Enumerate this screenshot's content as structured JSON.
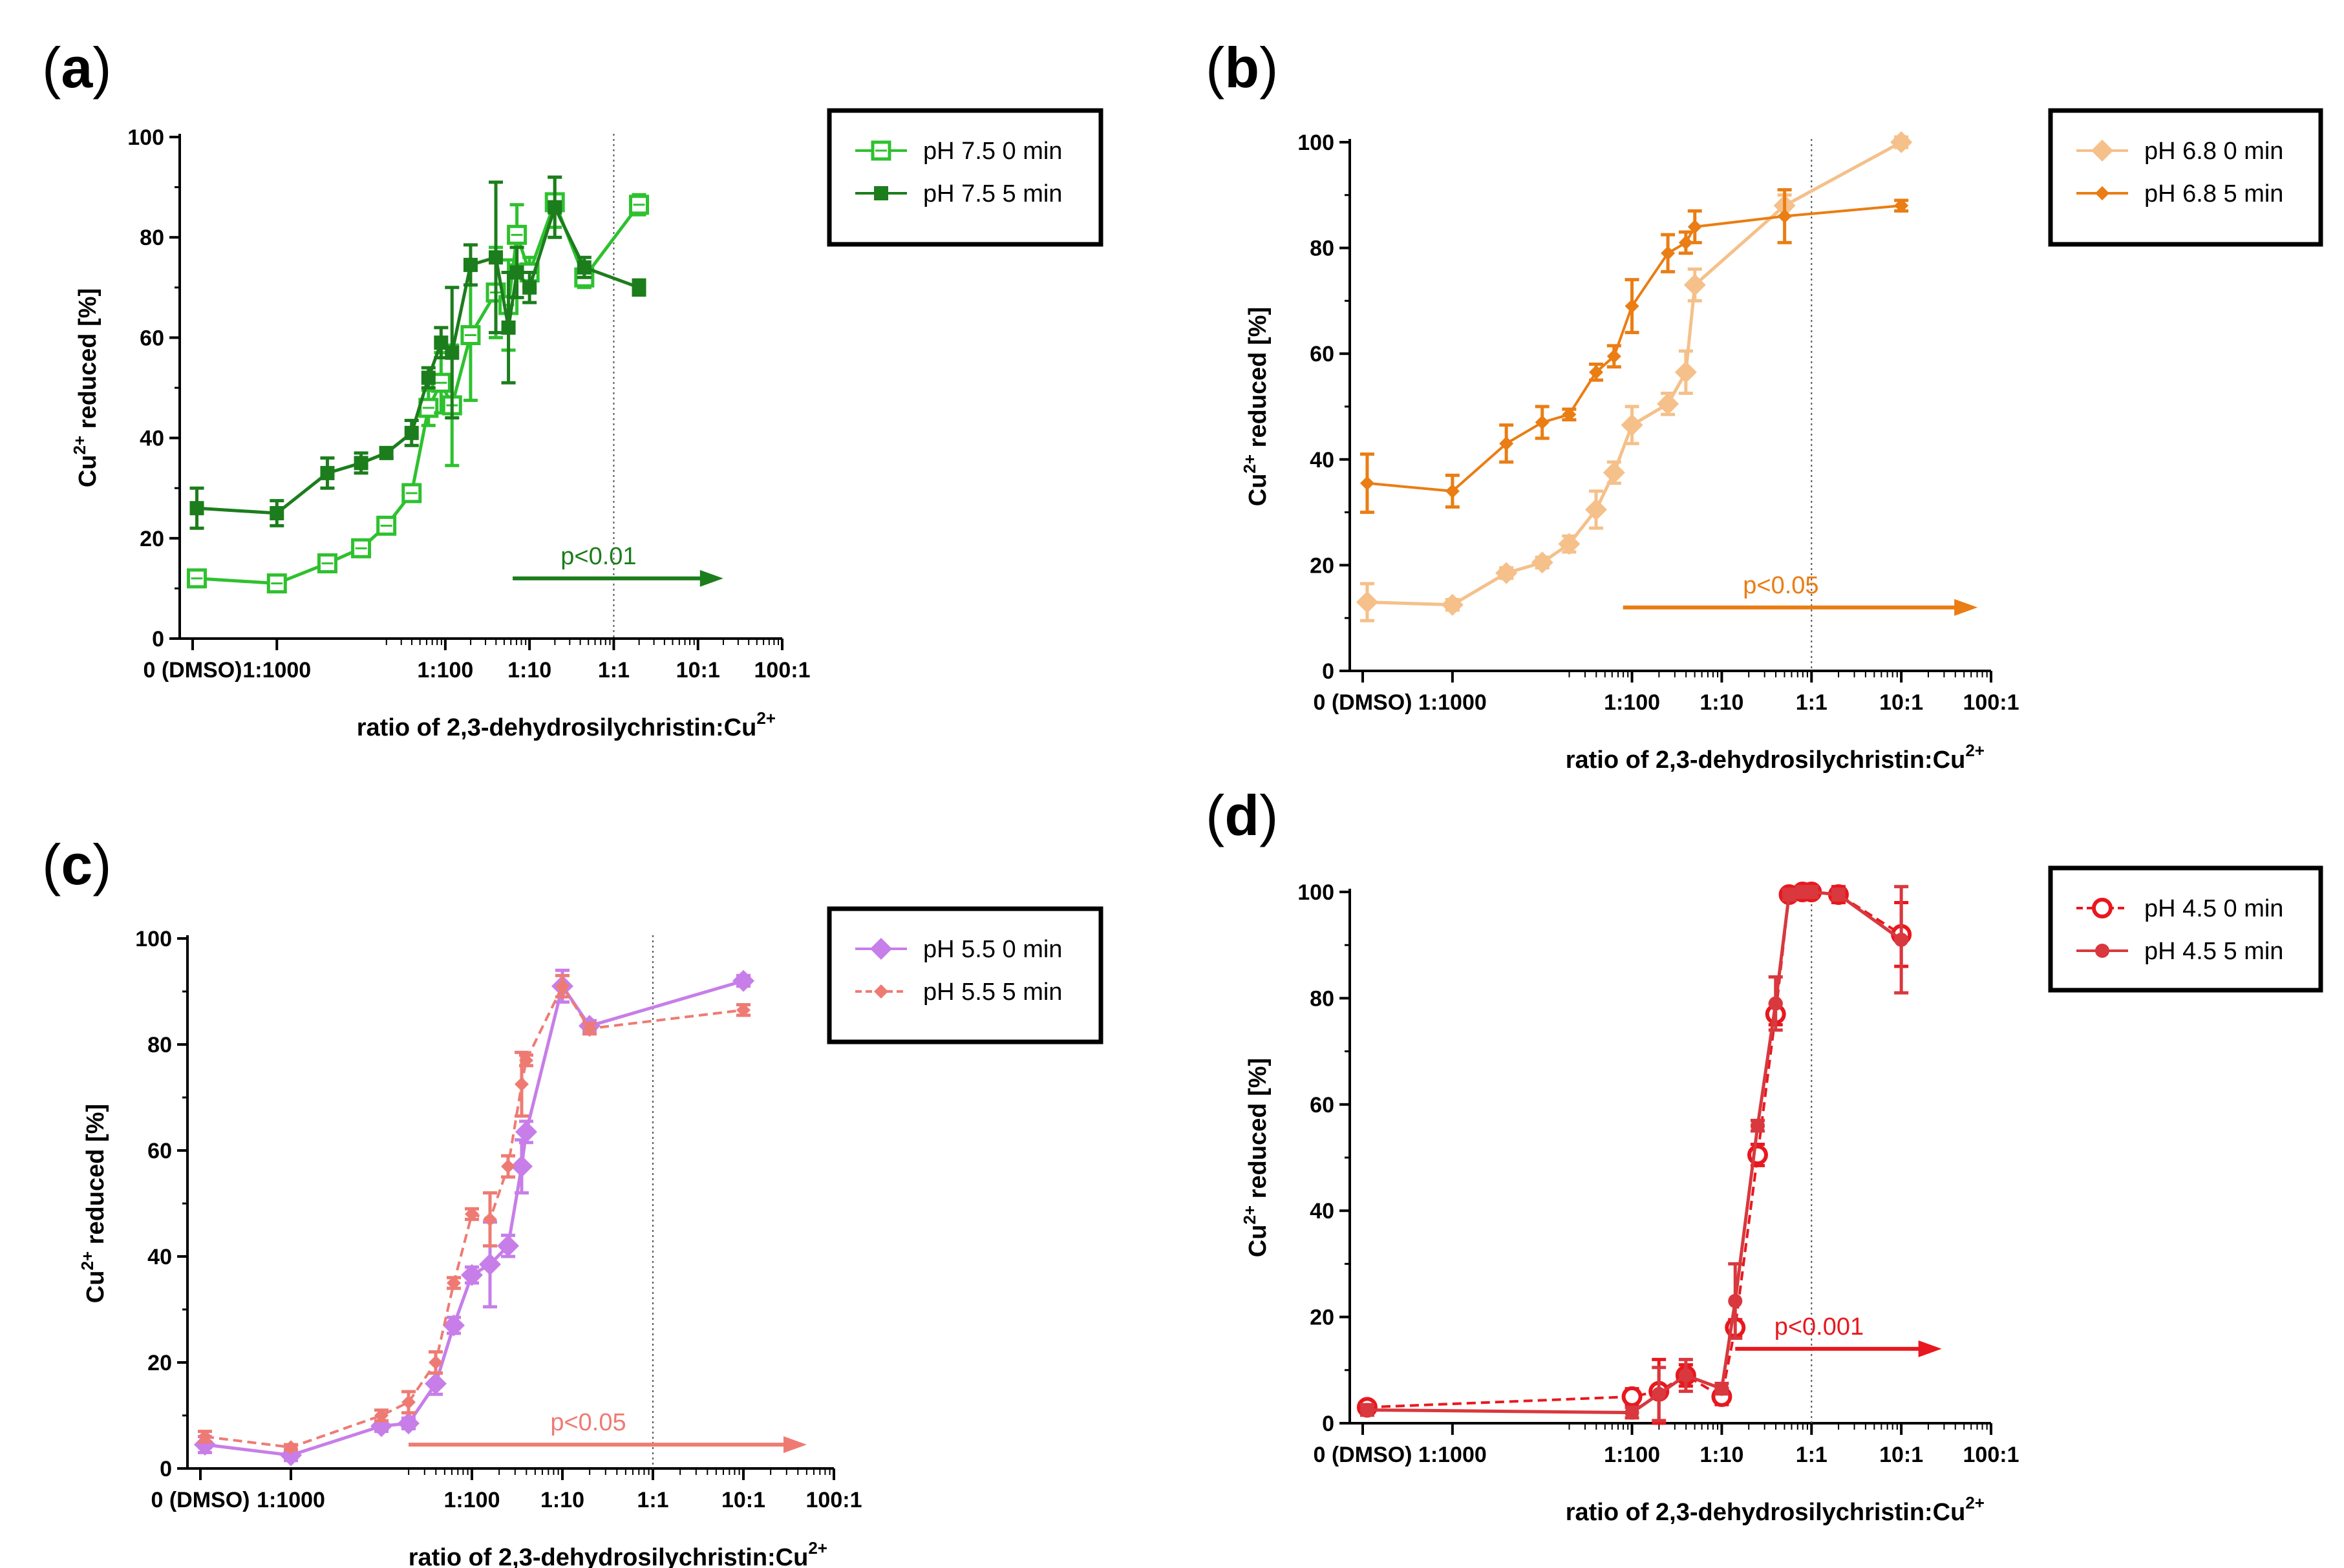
{
  "figure": {
    "colors": {
      "green_light": "#2ec12e",
      "green_dark": "#1c7d1c",
      "orange_light": "#f5c08a",
      "orange_dark": "#ea7d13",
      "purple": "#c77ee8",
      "salmon": "#ee7b73",
      "red": "#e8181e",
      "red_dark": "#d8383e"
    }
  },
  "chart_data": [
    {
      "id": "a",
      "type": "line",
      "panel_label": "a",
      "ylabel": "reduced [%]",
      "ylabel_prefix": "Cu",
      "ylabel_sup": "2+",
      "xlabel": "ratio of 2,3-dehydrosilychristin:Cu",
      "xlabel_sup": "2+",
      "x_tick_labels": [
        "0 (DMSO)",
        "1:1000",
        "1:100",
        "1:10",
        "1:1",
        "10:1",
        "100:1"
      ],
      "y_ticks": [
        0,
        20,
        40,
        60,
        80,
        100
      ],
      "ylim": [
        0,
        100
      ],
      "xlim": [
        -5,
        2
      ],
      "vline_x": 0,
      "significance": {
        "text": "p<0.01",
        "x_start": -1.2,
        "x_end": 1.3,
        "y": 12,
        "color": "#1c7d1c"
      },
      "legend": {
        "position": "top-right",
        "entries": [
          "pH 7.5 0 min",
          "pH 7.5 5 min"
        ]
      },
      "series": [
        {
          "name": "pH 7.5 0 min",
          "color": "#2ec12e",
          "marker": "square-open",
          "dashed": false,
          "x": [
            -4.95,
            -4,
            -3.4,
            -3,
            -2.7,
            -2.4,
            -2.2,
            -2.05,
            -1.92,
            -1.7,
            -1.4,
            -1.25,
            -1.15,
            -1,
            -0.7,
            -0.35,
            0.3
          ],
          "y": [
            12,
            11,
            15,
            18,
            22.5,
            29,
            46,
            51,
            46.5,
            60.5,
            69,
            66.5,
            80.5,
            73,
            87,
            72,
            86.5
          ],
          "err": [
            1.5,
            0.8,
            1,
            1,
            1,
            1.5,
            3.5,
            6,
            12,
            13,
            9,
            9,
            6,
            3,
            5,
            2,
            2
          ]
        },
        {
          "name": "pH 7.5 5 min",
          "color": "#1c7d1c",
          "marker": "square",
          "dashed": false,
          "x": [
            -4.95,
            -4,
            -3.4,
            -3,
            -2.7,
            -2.4,
            -2.2,
            -2.05,
            -1.92,
            -1.7,
            -1.4,
            -1.25,
            -1.15,
            -1,
            -0.7,
            -0.35,
            0.3
          ],
          "y": [
            26,
            25,
            33,
            35,
            37,
            41,
            52,
            59,
            57,
            74.5,
            76,
            62,
            73,
            70,
            86,
            74,
            70
          ],
          "err": [
            4,
            2.5,
            3,
            2,
            1,
            2.5,
            2,
            3,
            13,
            4,
            15,
            11,
            5,
            3,
            6,
            2,
            1.5
          ]
        }
      ]
    },
    {
      "id": "b",
      "type": "line",
      "panel_label": "b",
      "ylabel": "reduced [%]",
      "ylabel_prefix": "Cu",
      "ylabel_sup": "2+",
      "xlabel": "ratio of 2,3-dehydrosilychristin:Cu",
      "xlabel_sup": "2+",
      "x_tick_labels": [
        "0 (DMSO)",
        "1:1000",
        "1:100",
        "1:10",
        "1:1",
        "10:1",
        "100:1"
      ],
      "y_ticks": [
        0,
        20,
        40,
        60,
        80,
        100
      ],
      "ylim": [
        0,
        100
      ],
      "xlim": [
        -5,
        2
      ],
      "vline_x": 0,
      "significance": {
        "text": "p<0.05",
        "x_start": -2.1,
        "x_end": 1.85,
        "y": 12,
        "color": "#ea7d13"
      },
      "legend": {
        "position": "top-right",
        "entries": [
          "pH 6.8 0 min",
          "pH 6.8 5 min"
        ]
      },
      "series": [
        {
          "name": "pH 6.8 0 min",
          "color": "#f5c08a",
          "marker": "diamond",
          "dashed": false,
          "x": [
            -4.95,
            -4,
            -3.4,
            -3,
            -2.7,
            -2.4,
            -2.2,
            -2,
            -1.6,
            -1.4,
            -1.3,
            -0.3,
            1
          ],
          "y": [
            13,
            12.5,
            18.5,
            20.5,
            24,
            30.5,
            37.5,
            46.5,
            50.5,
            56.5,
            73,
            88,
            100
          ],
          "err": [
            3.5,
            1,
            1,
            1,
            1.5,
            3.5,
            2,
            3.5,
            2,
            4,
            3,
            2,
            1
          ]
        },
        {
          "name": "pH 6.8 5 min",
          "color": "#ea7d13",
          "marker": "diamond-small",
          "dashed": false,
          "x": [
            -4.95,
            -4,
            -3.4,
            -3,
            -2.7,
            -2.4,
            -2.2,
            -2,
            -1.6,
            -1.4,
            -1.3,
            -0.3,
            1
          ],
          "y": [
            35.5,
            34,
            43,
            47,
            48.5,
            56.5,
            59.5,
            69,
            79,
            81,
            84,
            86,
            88
          ],
          "err": [
            5.5,
            3,
            3.5,
            3,
            1,
            1.5,
            2,
            5,
            3.5,
            2,
            3,
            5,
            1
          ]
        }
      ]
    },
    {
      "id": "c",
      "type": "line",
      "panel_label": "c",
      "ylabel": "reduced [%]",
      "ylabel_prefix": "Cu",
      "ylabel_sup": "2+",
      "xlabel": "ratio of 2,3-dehydrosilychristin:Cu",
      "xlabel_sup": "2+",
      "x_tick_labels": [
        "0 (DMSO)",
        "1:1000",
        "1:100",
        "1:10",
        "1:1",
        "10:1",
        "100:1"
      ],
      "y_ticks": [
        0,
        20,
        40,
        60,
        80,
        100
      ],
      "ylim": [
        0,
        100
      ],
      "xlim": [
        -5,
        2
      ],
      "vline_x": 0,
      "significance": {
        "text": "p<0.05",
        "x_start": -2.7,
        "x_end": 1.7,
        "y": 4.5,
        "color": "#ee7b73"
      },
      "legend": {
        "position": "top-right",
        "entries": [
          "pH 5.5 0 min",
          "pH 5.5 5 min"
        ]
      },
      "series": [
        {
          "name": "pH 5.5 0 min",
          "color": "#c77ee8",
          "marker": "diamond",
          "dashed": false,
          "x": [
            -4.95,
            -4,
            -3,
            -2.7,
            -2.4,
            -2.2,
            -2,
            -1.8,
            -1.6,
            -1.45,
            -1.4,
            -1,
            -0.7,
            1
          ],
          "y": [
            4.5,
            2.5,
            8,
            8.5,
            16,
            27,
            36.5,
            38.5,
            42,
            57,
            63.5,
            91,
            83.5,
            92
          ],
          "err": [
            1.5,
            1,
            1,
            1,
            2,
            1.5,
            1.5,
            8,
            2,
            5,
            2,
            3,
            1,
            1
          ]
        },
        {
          "name": "pH 5.5 5 min",
          "color": "#ee7b73",
          "marker": "diamond-small",
          "dashed": true,
          "x": [
            -4.95,
            -4,
            -3,
            -2.7,
            -2.4,
            -2.2,
            -2,
            -1.8,
            -1.6,
            -1.45,
            -1.4,
            -1,
            -0.7,
            1
          ],
          "y": [
            6,
            4,
            10,
            12.5,
            20,
            35,
            48,
            47,
            57,
            72.5,
            77,
            91,
            83,
            86.5
          ],
          "err": [
            1,
            0.5,
            1,
            2,
            2,
            1,
            1,
            5,
            2,
            6,
            1,
            2,
            1,
            1
          ]
        }
      ]
    },
    {
      "id": "d",
      "type": "line",
      "panel_label": "d",
      "ylabel": "reduced [%]",
      "ylabel_prefix": "Cu",
      "ylabel_sup": "2+",
      "xlabel": "ratio of 2,3-dehydrosilychristin:Cu",
      "xlabel_sup": "2+",
      "x_tick_labels": [
        "0 (DMSO)",
        "1:1000",
        "1:100",
        "1:10",
        "1:1",
        "10:1",
        "100:1"
      ],
      "y_ticks": [
        0,
        20,
        40,
        60,
        80,
        100
      ],
      "ylim": [
        0,
        100
      ],
      "xlim": [
        -5,
        2
      ],
      "vline_x": 0,
      "significance": {
        "text": "p<0.001",
        "x_start": -0.85,
        "x_end": 1.45,
        "y": 14,
        "color": "#e8181e"
      },
      "legend": {
        "position": "top-right",
        "entries": [
          "pH 4.5 0 min",
          "pH 4.5 5 min"
        ]
      },
      "series": [
        {
          "name": "pH 4.5 0 min",
          "color": "#e8181e",
          "marker": "circle-open",
          "dashed": true,
          "x": [
            -4.95,
            -2,
            -1.7,
            -1.4,
            -1,
            -0.85,
            -0.6,
            -0.4,
            -0.25,
            -0.1,
            0,
            0.3,
            1
          ],
          "y": [
            3,
            5,
            6,
            9,
            5,
            18,
            50.5,
            77,
            99.5,
            100,
            100,
            99.5,
            92
          ],
          "err": [
            1,
            1.5,
            6,
            2,
            1.5,
            1.5,
            2,
            2,
            0.5,
            0.5,
            1,
            1.5,
            6
          ]
        },
        {
          "name": "pH 4.5 5 min",
          "color": "#d8383e",
          "marker": "circle",
          "dashed": false,
          "x": [
            -4.95,
            -2,
            -1.7,
            -1.4,
            -1,
            -0.85,
            -0.6,
            -0.4,
            -0.25,
            -0.1,
            0,
            0.3,
            1
          ],
          "y": [
            2.5,
            2,
            5.5,
            9,
            6.5,
            23,
            56,
            79,
            99.5,
            100,
            100,
            99.5,
            91
          ],
          "err": [
            1,
            1,
            5,
            3,
            1,
            7,
            1,
            5,
            1,
            1,
            1,
            1,
            10
          ]
        }
      ]
    }
  ]
}
